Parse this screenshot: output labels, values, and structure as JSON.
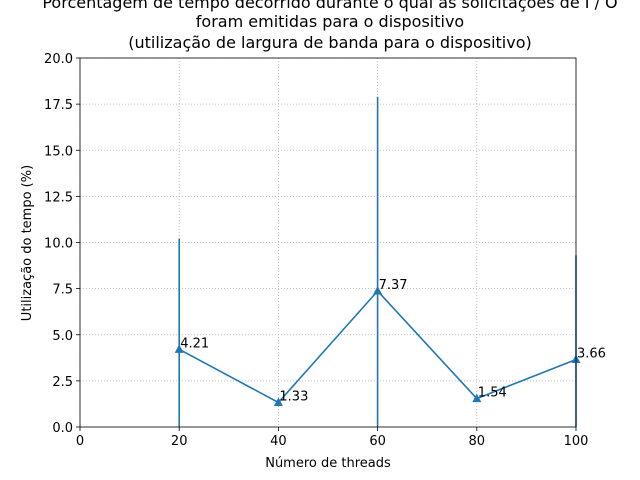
{
  "chart_data": {
    "type": "line",
    "title_lines": [
      "Porcentagem de tempo decorrido durante o qual as solicitações de I / O",
      "foram emitidas para o dispositivo",
      "(utilização de largura de banda para o dispositivo)"
    ],
    "xlabel": "Número de threads",
    "ylabel": "Utilização do tempo (%)",
    "xlim": [
      0,
      100
    ],
    "ylim": [
      0,
      20
    ],
    "xticks": [
      0,
      20,
      40,
      60,
      80,
      100
    ],
    "yticks": [
      0.0,
      2.5,
      5.0,
      7.5,
      10.0,
      12.5,
      15.0,
      17.5,
      20.0
    ],
    "ytick_labels": [
      "0.0",
      "2.5",
      "5.0",
      "7.5",
      "10.0",
      "12.5",
      "15.0",
      "17.5",
      "20.0"
    ],
    "grid": true,
    "color": "#1f77b4",
    "marker": "triangle-up",
    "series": [
      {
        "x": [
          20,
          40,
          60,
          80,
          100
        ],
        "y": [
          4.21,
          1.33,
          7.37,
          1.54,
          3.66
        ],
        "labels": [
          "4.21",
          "1.33",
          "7.37",
          "1.54",
          "3.66"
        ],
        "error_upper": [
          10.2,
          0,
          17.9,
          0,
          9.3
        ],
        "error_lower": [
          0,
          0,
          0,
          0,
          0
        ]
      }
    ]
  }
}
